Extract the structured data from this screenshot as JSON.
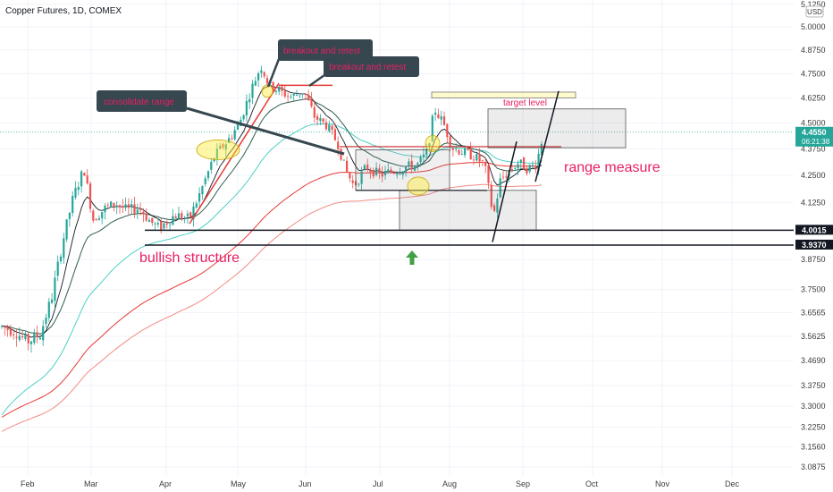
{
  "chart_data": {
    "type": "candlestick",
    "title": "Copper Futures, 1D, COMEX",
    "currency": "USD",
    "y_scale": "log",
    "ylim": [
      3.06,
      5.14
    ],
    "x_tick_labels": [
      "Feb",
      "Mar",
      "Apr",
      "May",
      "Jun",
      "Jul",
      "Aug",
      "Sep",
      "Oct",
      "Nov",
      "Dec"
    ],
    "y_tick_labels": [
      "5.1250",
      "5.0000",
      "4.8750",
      "4.7500",
      "4.6250",
      "4.5000",
      "4.3750",
      "4.2500",
      "4.1250",
      "3.8750",
      "3.7500",
      "3.6565",
      "3.5625",
      "3.4690",
      "3.3750",
      "3.3000",
      "3.2250",
      "3.1560",
      "3.0875"
    ],
    "price_badges": [
      {
        "label": "4.4550",
        "value": 4.455,
        "countdown": "06:21:38",
        "color": "#26a69a"
      },
      {
        "label": "4.0015",
        "value": 4.0015,
        "color": "#131722"
      },
      {
        "label": "3.9370",
        "value": 3.937,
        "color": "#131722"
      }
    ],
    "horizontal_levels": [
      4.0015,
      3.937
    ],
    "annotations": {
      "callouts": [
        "breakout and retest",
        "breakout and retest",
        "consolidate range"
      ],
      "target": "target level",
      "range_measure": "range measure",
      "bullish_structure": "bullish structure"
    },
    "colors": {
      "up": "#26a69a",
      "down": "#ef5350",
      "ma_black": "#131722",
      "ma_dark_green": "#2e5e4e",
      "ma_cyan": "#4dd0c5",
      "ma_red": "#e53935",
      "ma_salmon": "#f28b82",
      "annotation_text": "#e91e63",
      "callout_bg": "#37474f",
      "highlight": "#fff59d",
      "arrow": "#43a047"
    },
    "ohlc": []
  }
}
